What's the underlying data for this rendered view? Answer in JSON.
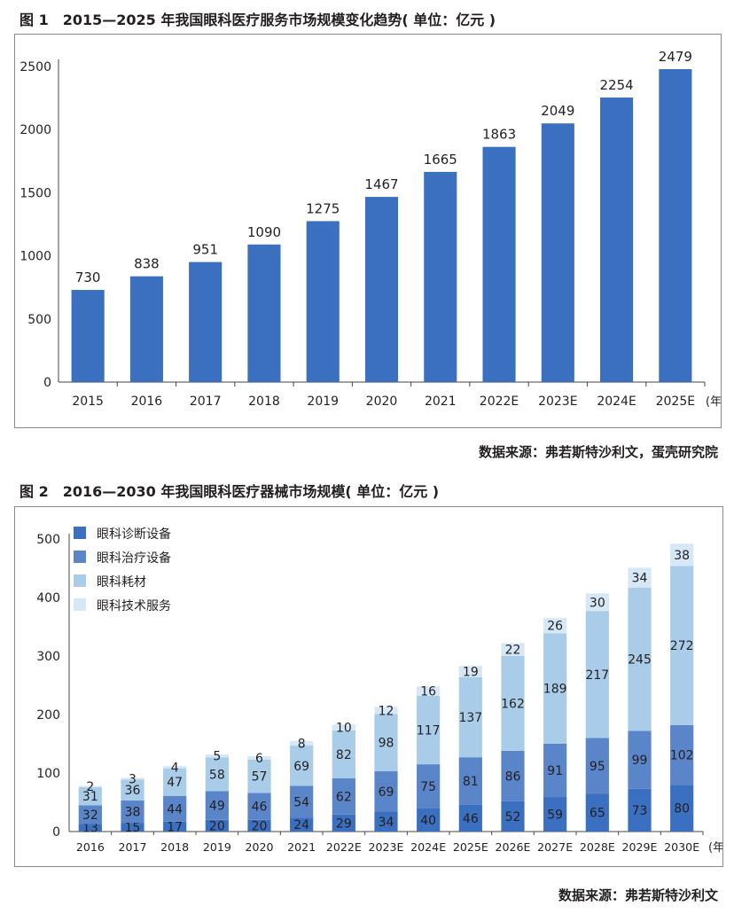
{
  "figure1": {
    "title": "图 1　2015—2025 年我国眼科医疗服务市场规模变化趋势( 单位：亿元 )",
    "source": "数据来源：弗若斯特沙利文，蛋壳研究院",
    "colors": {
      "bar": "#3b6fbf",
      "axis": "#444444",
      "text": "#231f20"
    },
    "chart_data": {
      "type": "bar",
      "categories": [
        "2015",
        "2016",
        "2017",
        "2018",
        "2019",
        "2020",
        "2021",
        "2022E",
        "2023E",
        "2024E",
        "2025E"
      ],
      "values": [
        730,
        838,
        951,
        1090,
        1275,
        1467,
        1665,
        1863,
        2049,
        2254,
        2479
      ],
      "title": "2015—2025 年我国眼科医疗服务市场规模变化趋势( 单位：亿元 )",
      "x_unit": "(年)",
      "ylim": [
        0,
        2500
      ],
      "yticks": [
        0,
        500,
        1000,
        1500,
        2000,
        2500
      ],
      "grid": false
    }
  },
  "figure2": {
    "title": "图 2　2016—2030 年我国眼科医疗器械市场规模( 单位：亿元 )",
    "source": "数据来源：弗若斯特沙利文",
    "colors": {
      "series": [
        "#3b6fbf",
        "#5b85c9",
        "#a9cde9",
        "#d6e8f6"
      ],
      "axis": "#444444",
      "text": "#231f20"
    },
    "chart_data": {
      "type": "bar",
      "stacked": true,
      "categories": [
        "2016",
        "2017",
        "2018",
        "2019",
        "2020",
        "2021",
        "2022E",
        "2023E",
        "2024E",
        "2025E",
        "2026E",
        "2027E",
        "2028E",
        "2029E",
        "2030E"
      ],
      "series": [
        {
          "name": "眼科诊断设备",
          "values": [
            13,
            15,
            17,
            20,
            20,
            24,
            29,
            34,
            40,
            46,
            52,
            59,
            65,
            73,
            80
          ]
        },
        {
          "name": "眼科治疗设备",
          "values": [
            32,
            38,
            44,
            49,
            46,
            54,
            62,
            69,
            75,
            81,
            86,
            91,
            95,
            99,
            102
          ]
        },
        {
          "name": "眼科耗材",
          "values": [
            31,
            36,
            47,
            58,
            57,
            69,
            82,
            98,
            117,
            137,
            162,
            189,
            217,
            245,
            272
          ]
        },
        {
          "name": "眼科技术服务",
          "values": [
            2,
            3,
            4,
            5,
            6,
            8,
            10,
            12,
            16,
            19,
            22,
            26,
            30,
            34,
            38
          ]
        }
      ],
      "title": "2016—2030 年我国眼科医疗器械市场规模( 单位：亿元 )",
      "x_unit": "(年)",
      "ylim": [
        0,
        500
      ],
      "yticks": [
        0,
        100,
        200,
        300,
        400,
        500
      ],
      "legend": "top-left",
      "grid": false
    }
  }
}
